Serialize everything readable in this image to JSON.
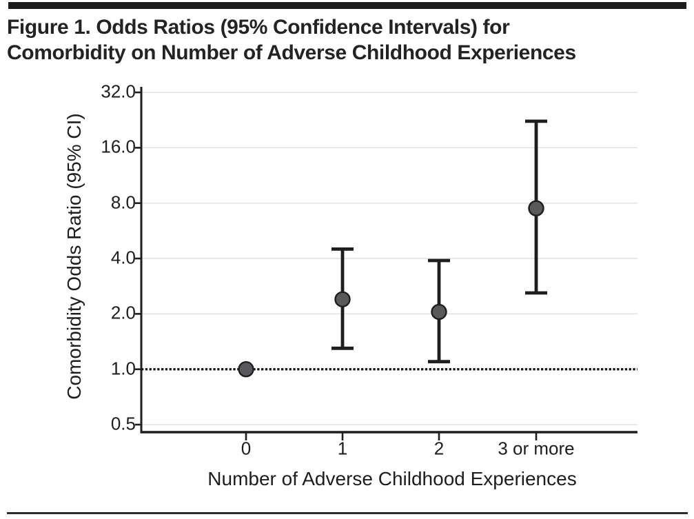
{
  "figure": {
    "title_line1": "Figure 1. Odds Ratios (95% Confidence Intervals) for",
    "title_line2": "Comorbidity on Number of Adverse Childhood Experiences"
  },
  "chart_data": {
    "type": "scatter",
    "subtype": "point-estimates-with-95ci-error-bars",
    "title": "Figure 1. Odds Ratios (95% Confidence Intervals) for Comorbidity on Number of Adverse Childhood Experiences",
    "xlabel": "Number of Adverse Childhood Experiences",
    "ylabel": "Comorbidity Odds Ratio (95% CI)",
    "categories": [
      "0",
      "1",
      "2",
      "3 or more"
    ],
    "series": [
      {
        "name": "Comorbidity odds ratio",
        "values": [
          1.0,
          2.4,
          2.05,
          7.5
        ],
        "ci_low": [
          null,
          1.3,
          1.1,
          2.6
        ],
        "ci_high": [
          null,
          4.5,
          3.9,
          22.3
        ]
      }
    ],
    "reference_line": {
      "value": 1.0,
      "style": "dotted"
    },
    "yscale": "log2",
    "ylim": [
      0.455,
      34.3
    ],
    "yticks": [
      32.0,
      16.0,
      8.0,
      4.0,
      2.0,
      1.0,
      0.5
    ],
    "ytick_labels": [
      "32.0",
      "16.0",
      "8.0",
      "4.0",
      "2.0",
      "1.0",
      "0.5"
    ],
    "grid": "horizontal-light",
    "legend": "none",
    "colors": {
      "marker_fill": "#59595b",
      "marker_stroke": "#1e1e1e",
      "error_bar": "#1e1e1e",
      "axis": "#1e1e1e",
      "gridline": "#e2e2e2",
      "reference_line": "#111111",
      "rule_bar": "#1c1c1c"
    }
  }
}
